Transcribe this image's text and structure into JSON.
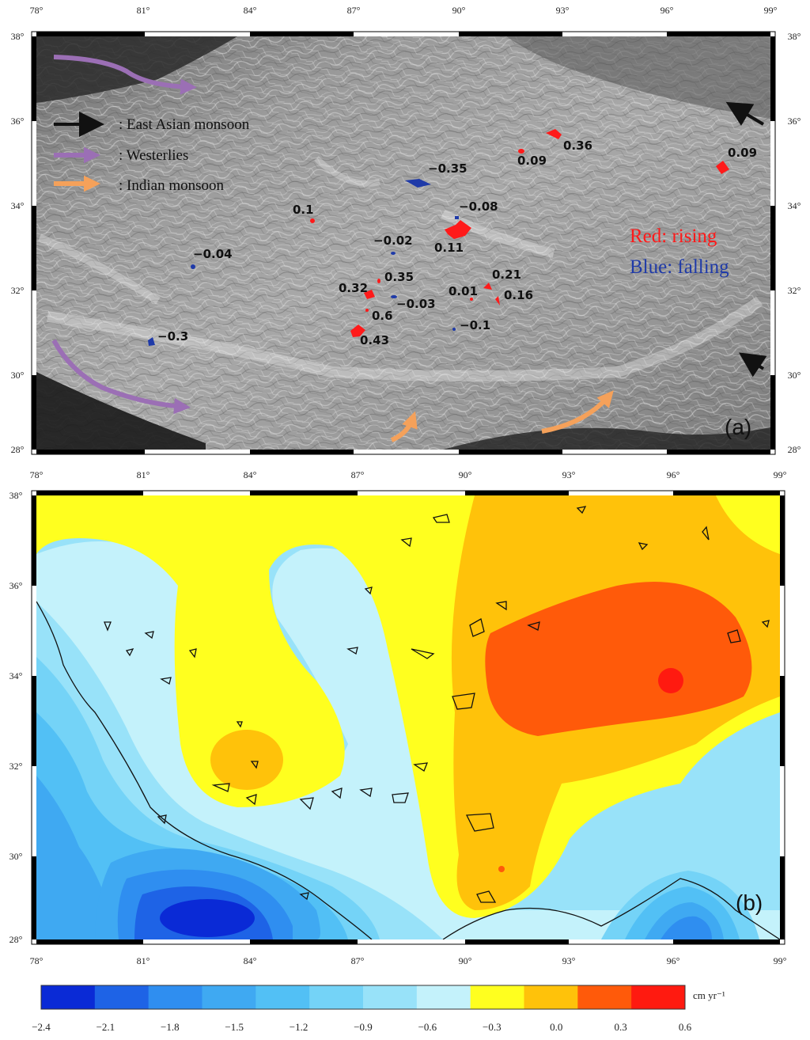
{
  "panel_a": {
    "panel_label": "(a)",
    "x_ticks": [
      "78°",
      "81°",
      "84°",
      "87°",
      "90°",
      "93°",
      "96°",
      "99°"
    ],
    "y_ticks": [
      "38°",
      "36°",
      "34°",
      "32°",
      "30°",
      "28°"
    ],
    "legend": [
      {
        "key": "black-arrow",
        "label": ": East Asian monsoon",
        "color": "#111111"
      },
      {
        "key": "purple-arrow",
        "label": ": Westerlies",
        "color": "#9b6fb5"
      },
      {
        "key": "orange-arrow",
        "label": ": Indian monsoon",
        "color": "#f5a15a"
      }
    ],
    "color_legend": {
      "rising": {
        "text": "Red: rising",
        "color": "#ff1a1a"
      },
      "falling": {
        "text": "Blue: falling",
        "color": "#1f3aa8"
      }
    },
    "lake_values": [
      "0.36",
      "0.09",
      "0.09",
      "−0.35",
      "−0.08",
      "0.1",
      "−0.02",
      "0.11",
      "−0.04",
      "0.35",
      "0.32",
      "−0.03",
      "0.6",
      "0.43",
      "0.21",
      "0.01",
      "0.16",
      "−0.1",
      "−0.3"
    ]
  },
  "panel_b": {
    "panel_label": "(b)",
    "x_ticks": [
      "78°",
      "81°",
      "84°",
      "87°",
      "90°",
      "93°",
      "96°",
      "99°"
    ],
    "y_ticks": [
      "38°",
      "36°",
      "34°",
      "32°",
      "30°",
      "28°"
    ]
  },
  "colorbar": {
    "unit": "cm yr⁻¹",
    "tick_labels": [
      "−2.4",
      "−2.1",
      "−1.8",
      "−1.5",
      "−1.2",
      "−0.9",
      "−0.6",
      "−0.3",
      "0.0",
      "0.3",
      "0.6"
    ],
    "colors": [
      "#0a2ad6",
      "#1e63e6",
      "#2f8ef0",
      "#3fa9f2",
      "#52c0f5",
      "#74d3f7",
      "#98e2f9",
      "#c4f2fb",
      "#ffff1f",
      "#ffc20a",
      "#ff5a0a",
      "#ff1a10"
    ]
  }
}
